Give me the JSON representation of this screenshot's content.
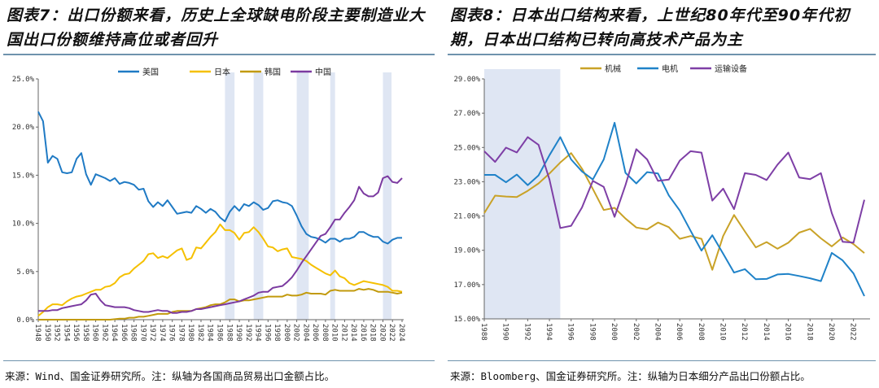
{
  "left": {
    "title": "图表7：出口份额来看，历史上全球缺电阶段主要制造业大国出口份额维持高位或者回升",
    "source": "来源：Wind、国金证券研究所。注：纵轴为各国商品贸易出口金额占比。"
  },
  "right": {
    "title": "图表8：日本出口结构来看，上世纪80年代至90年代初期，日本出口结构已转向高技术产品为主",
    "source": "来源：Bloomberg、国金证券研究所。注：纵轴为日本细分产品出口份额占比。"
  },
  "chart_data": [
    {
      "type": "line",
      "title": "",
      "x_start": 1948,
      "x_end": 2024,
      "ylim": [
        0,
        25
      ],
      "y_ticks": [
        "0.0%",
        "5.0%",
        "10.0%",
        "15.0%",
        "20.0%",
        "25.0%"
      ],
      "legend": "top",
      "shaded_periods": [
        [
          1987,
          1989
        ],
        [
          1993,
          1995
        ],
        [
          2002,
          2004.5
        ],
        [
          2009,
          2010
        ],
        [
          2020,
          2021.8
        ]
      ],
      "shade_color": "#dfe6f3",
      "series": [
        {
          "name": "美国",
          "color": "#1f7ac4",
          "values": [
            21.6,
            20.6,
            16.3,
            17.0,
            16.7,
            15.3,
            15.2,
            15.3,
            16.7,
            17.3,
            15.1,
            14.0,
            15.1,
            14.9,
            14.7,
            14.4,
            14.7,
            14.1,
            14.3,
            14.2,
            14.0,
            13.5,
            13.6,
            12.3,
            11.7,
            12.2,
            11.8,
            12.4,
            11.7,
            11.0,
            11.1,
            11.2,
            11.1,
            11.8,
            11.5,
            11.1,
            11.5,
            11.2,
            10.6,
            10.2,
            11.2,
            11.8,
            11.3,
            12.0,
            11.8,
            12.2,
            11.9,
            11.4,
            11.6,
            12.3,
            12.4,
            12.2,
            12.1,
            11.8,
            10.8,
            9.7,
            8.9,
            8.6,
            8.5,
            8.3,
            8.0,
            8.4,
            8.4,
            8.1,
            8.4,
            8.4,
            8.6,
            9.1,
            9.1,
            8.8,
            8.6,
            8.6,
            8.1,
            7.9,
            8.3,
            8.5,
            8.5
          ]
        },
        {
          "name": "日本",
          "color": "#f5c000",
          "values": [
            0.4,
            0.8,
            1.3,
            1.6,
            1.6,
            1.5,
            1.9,
            2.2,
            2.4,
            2.5,
            2.7,
            2.9,
            3.1,
            3.1,
            3.4,
            3.5,
            3.8,
            4.4,
            4.7,
            4.8,
            5.3,
            5.7,
            6.1,
            6.8,
            6.9,
            6.4,
            6.6,
            6.4,
            6.8,
            7.2,
            7.4,
            6.2,
            6.4,
            7.5,
            7.4,
            8.0,
            8.6,
            9.1,
            9.9,
            9.3,
            9.3,
            9.0,
            8.3,
            9.0,
            9.1,
            9.6,
            9.1,
            8.4,
            7.6,
            7.5,
            7.1,
            7.3,
            7.4,
            6.5,
            6.4,
            6.3,
            6.1,
            5.7,
            5.4,
            5.1,
            4.8,
            4.6,
            5.1,
            4.5,
            4.3,
            3.8,
            3.6,
            3.8,
            4.0,
            3.9,
            3.8,
            3.7,
            3.6,
            3.4,
            3.0,
            3.0,
            2.9
          ]
        },
        {
          "name": "韩国",
          "color": "#c29a0c",
          "values": [
            0.0,
            0.0,
            0.0,
            0.0,
            0.0,
            0.0,
            0.0,
            0.0,
            0.0,
            0.0,
            0.0,
            0.0,
            0.0,
            0.0,
            0.0,
            0.0,
            0.05,
            0.1,
            0.1,
            0.2,
            0.2,
            0.3,
            0.3,
            0.4,
            0.5,
            0.6,
            0.6,
            0.6,
            0.8,
            0.9,
            0.9,
            0.9,
            0.9,
            1.1,
            1.2,
            1.3,
            1.5,
            1.6,
            1.6,
            1.8,
            2.1,
            2.1,
            1.9,
            2.0,
            2.0,
            2.1,
            2.2,
            2.3,
            2.4,
            2.4,
            2.4,
            2.4,
            2.6,
            2.5,
            2.5,
            2.6,
            2.8,
            2.7,
            2.7,
            2.7,
            2.6,
            3.0,
            3.1,
            3.0,
            3.0,
            3.0,
            3.0,
            3.2,
            3.1,
            3.2,
            3.1,
            2.9,
            2.9,
            2.9,
            2.8,
            2.7,
            2.8
          ]
        },
        {
          "name": "中国",
          "color": "#7b3aa0",
          "values": [
            0.9,
            0.9,
            0.9,
            1.0,
            1.0,
            1.2,
            1.3,
            1.4,
            1.5,
            1.6,
            2.0,
            2.6,
            2.7,
            2.0,
            1.5,
            1.4,
            1.3,
            1.3,
            1.3,
            1.2,
            1.0,
            0.9,
            0.8,
            0.8,
            0.9,
            1.0,
            0.9,
            0.9,
            0.7,
            0.7,
            0.8,
            0.8,
            0.9,
            1.1,
            1.1,
            1.2,
            1.3,
            1.4,
            1.5,
            1.6,
            1.7,
            1.8,
            1.9,
            2.1,
            2.3,
            2.5,
            2.8,
            2.9,
            2.9,
            3.3,
            3.4,
            3.5,
            3.9,
            4.4,
            5.1,
            5.9,
            6.6,
            7.3,
            8.0,
            8.7,
            8.9,
            9.6,
            10.4,
            10.4,
            11.1,
            11.7,
            12.4,
            13.8,
            13.1,
            12.8,
            12.8,
            13.2,
            14.7,
            14.9,
            14.3,
            14.2,
            14.7
          ]
        }
      ]
    },
    {
      "type": "line",
      "title": "",
      "x_start": 1988,
      "x_end": 2023,
      "ylim": [
        15,
        29
      ],
      "y_ticks": [
        "15.00%",
        "17.00%",
        "19.00%",
        "21.00%",
        "23.00%",
        "25.00%",
        "27.00%",
        "29.00%"
      ],
      "legend": "top",
      "shaded_periods": [
        [
          1988,
          1995
        ]
      ],
      "shade_color": "#dfe6f3",
      "series": [
        {
          "name": "机械",
          "color": "#c9a227",
          "values": [
            21.17,
            22.19,
            22.14,
            22.11,
            22.47,
            22.9,
            23.48,
            24.12,
            24.67,
            23.76,
            22.58,
            21.35,
            21.48,
            20.85,
            20.33,
            20.22,
            20.62,
            20.35,
            19.67,
            19.83,
            19.67,
            17.86,
            19.83,
            21.06,
            20.1,
            19.17,
            19.48,
            19.09,
            19.44,
            20.03,
            20.25,
            19.7,
            19.23,
            19.75,
            19.36,
            18.84
          ]
        },
        {
          "name": "电机",
          "color": "#1f82c8",
          "values": [
            23.4,
            23.4,
            22.97,
            23.42,
            22.8,
            23.37,
            24.55,
            25.6,
            24.3,
            23.6,
            23.13,
            24.3,
            26.44,
            23.52,
            22.9,
            23.56,
            23.48,
            22.2,
            21.32,
            20.14,
            18.98,
            19.88,
            18.8,
            17.7,
            17.9,
            17.31,
            17.33,
            17.59,
            17.62,
            17.5,
            17.37,
            17.2,
            18.85,
            18.41,
            17.65,
            16.33
          ]
        },
        {
          "name": "运输设备",
          "color": "#7e3fa6",
          "values": [
            24.78,
            24.16,
            24.99,
            24.71,
            25.6,
            25.15,
            23.13,
            20.3,
            20.43,
            21.5,
            23.05,
            22.7,
            20.95,
            22.8,
            24.9,
            24.3,
            23.05,
            23.13,
            24.23,
            24.78,
            24.7,
            21.9,
            22.6,
            21.4,
            23.5,
            23.4,
            23.1,
            24.0,
            24.7,
            23.25,
            23.15,
            23.5,
            21.17,
            19.5,
            19.45,
            21.95
          ]
        }
      ]
    }
  ]
}
